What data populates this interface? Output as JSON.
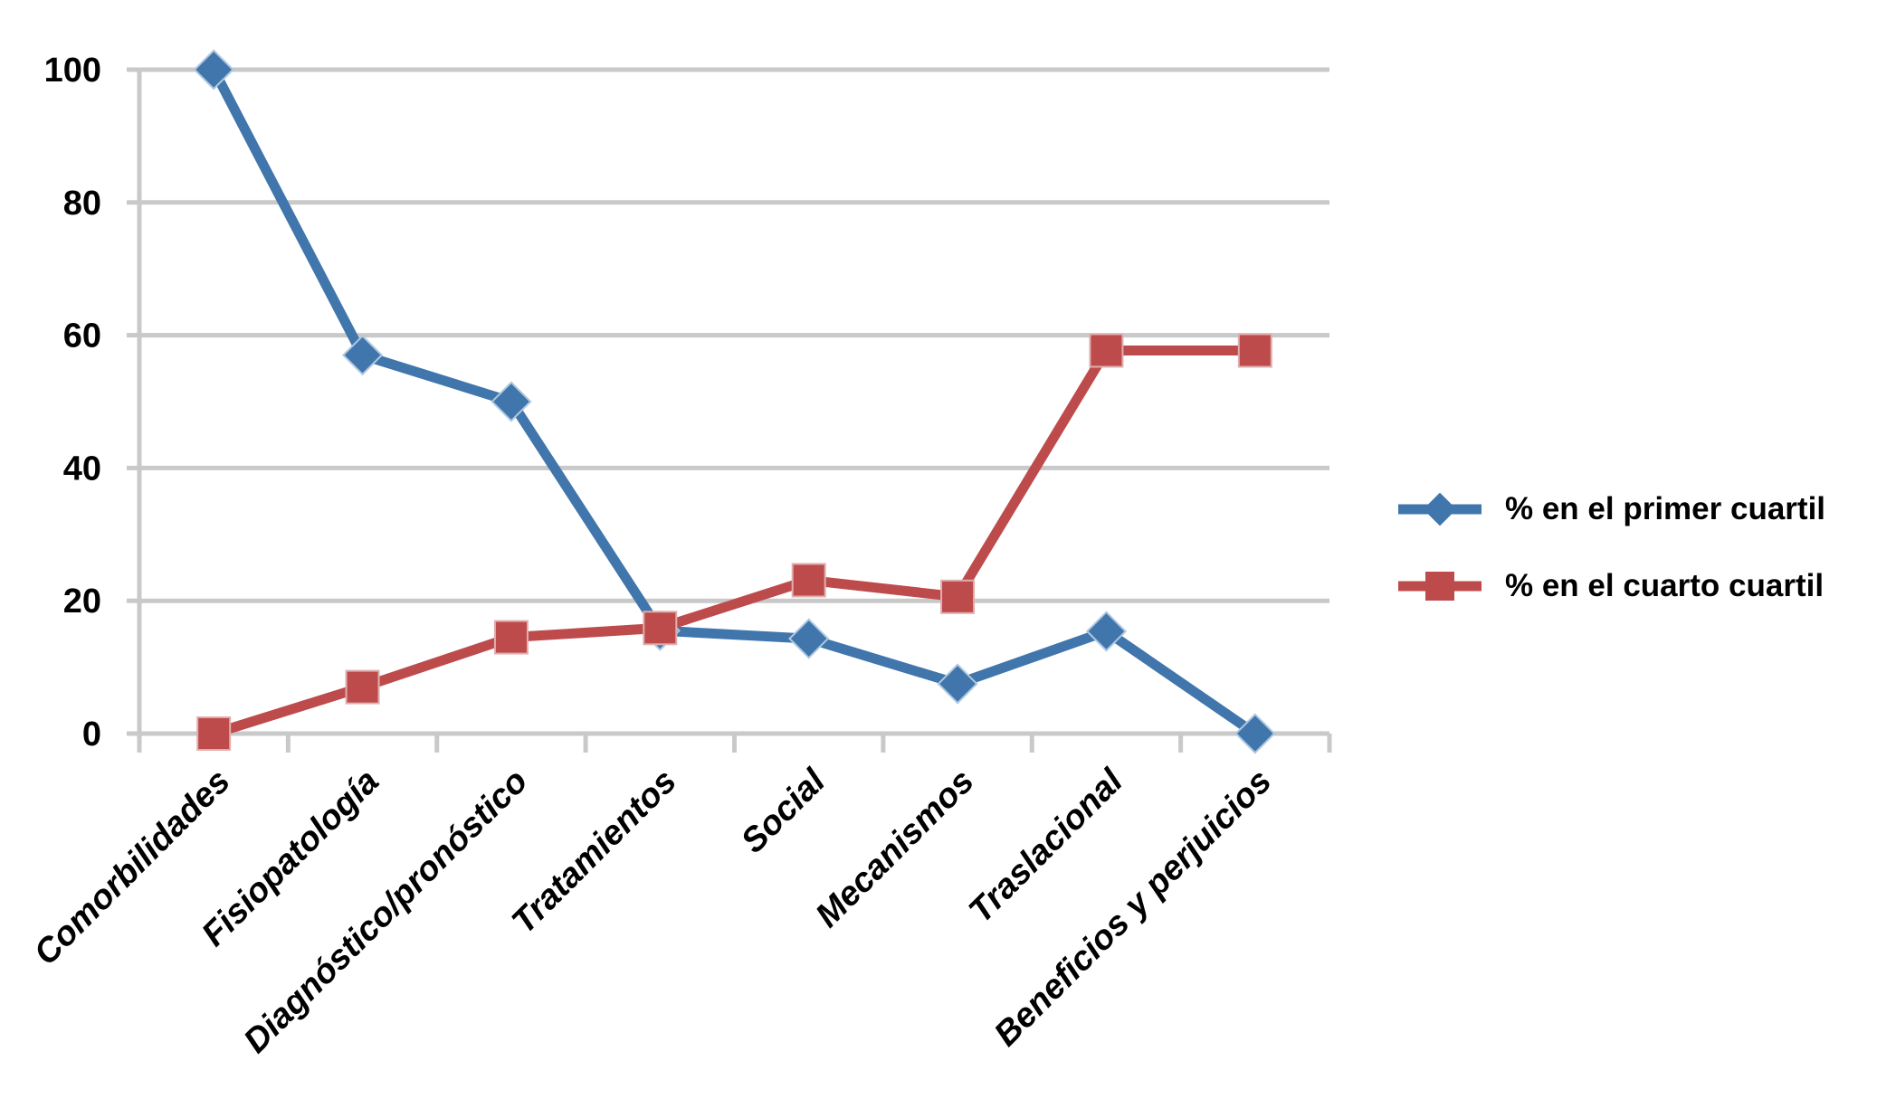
{
  "chart_data": {
    "type": "line",
    "title": "",
    "xlabel": "",
    "ylabel": "",
    "categories": [
      "Comorbilidades",
      "Fisiopatología",
      "Diagnóstico/pronóstico",
      "Tratamientos",
      "Social",
      "Mecanismos",
      "Traslacional",
      "Beneficios y perjuicios"
    ],
    "series": [
      {
        "name": "% en el primer cuartil",
        "marker": "diamond",
        "color": "#4076AC",
        "marker_edge_color": "#AFC8E1",
        "values": [
          100,
          57,
          50,
          15.5,
          14.3,
          7.5,
          15.4,
          0
        ]
      },
      {
        "name": "% en el cuarto cuartil",
        "marker": "square",
        "color": "#BE4B4C",
        "marker_edge_color": "#DFAFAE",
        "values": [
          0,
          7,
          14.5,
          15.9,
          23.1,
          20.6,
          57.7,
          57.7
        ]
      }
    ],
    "ylim": [
      0,
      100
    ],
    "yticks": [
      0,
      20,
      40,
      60,
      80,
      100
    ],
    "grid": "horizontal",
    "gridline_color": "#C9C9C9",
    "axis_color": "#C9C9C9",
    "legend_position": "right",
    "background": "#FFFFFF"
  }
}
